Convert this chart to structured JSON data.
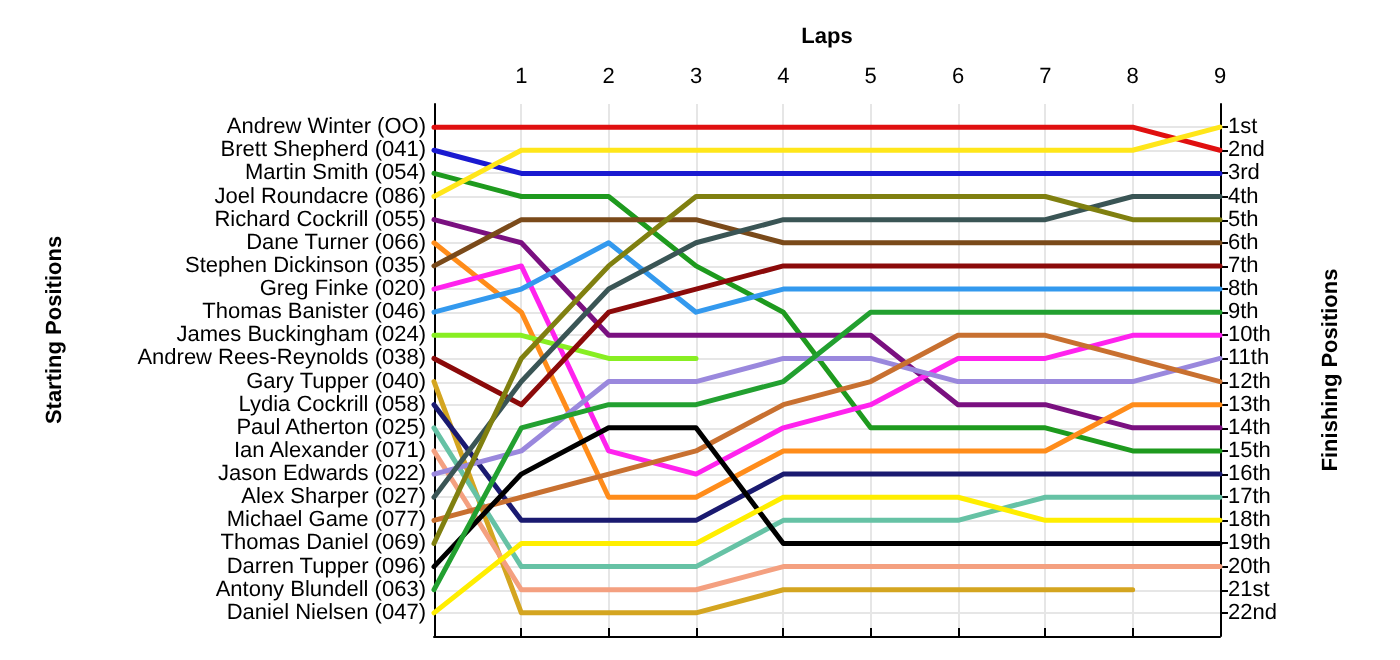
{
  "chart_data": {
    "type": "line",
    "xlabel": "Laps",
    "annotations": [
      "Starting Positions"
    ],
    "y2label": "Finishing Positions",
    "legend": "left",
    "x": [
      0,
      1,
      2,
      3,
      4,
      5,
      6,
      7,
      8,
      9
    ],
    "xlim": [
      0,
      9
    ],
    "xticks": [
      1,
      2,
      3,
      4,
      5,
      6,
      7,
      8,
      9
    ],
    "y2lim": [
      23,
      0
    ],
    "y2ticks": [
      {
        "value": 1,
        "label": "1st"
      },
      {
        "value": 2,
        "label": "2nd"
      },
      {
        "value": 3,
        "label": "3rd"
      },
      {
        "value": 4,
        "label": "4th"
      },
      {
        "value": 5,
        "label": "5th"
      },
      {
        "value": 6,
        "label": "6th"
      },
      {
        "value": 7,
        "label": "7th"
      },
      {
        "value": 8,
        "label": "8th"
      },
      {
        "value": 9,
        "label": "9th"
      },
      {
        "value": 10,
        "label": "10th"
      },
      {
        "value": 11,
        "label": "11th"
      },
      {
        "value": 12,
        "label": "12th"
      },
      {
        "value": 13,
        "label": "13th"
      },
      {
        "value": 14,
        "label": "14th"
      },
      {
        "value": 15,
        "label": "15th"
      },
      {
        "value": 16,
        "label": "16th"
      },
      {
        "value": 17,
        "label": "17th"
      },
      {
        "value": 18,
        "label": "18th"
      },
      {
        "value": 19,
        "label": "19th"
      },
      {
        "value": 20,
        "label": "20th"
      },
      {
        "value": 21,
        "label": "21st"
      },
      {
        "value": 22,
        "label": "22nd"
      }
    ],
    "grid": true,
    "marker": "none",
    "line_style": "solid",
    "series": [
      {
        "name": "Andrew Winter (OO)",
        "axis": "y2",
        "color": "#e01010",
        "values": [
          1,
          1,
          1,
          1,
          1,
          1,
          1,
          1,
          1,
          2
        ]
      },
      {
        "name": "Brett Shepherd (041)",
        "axis": "y2",
        "color": "#1a1ad0",
        "values": [
          2,
          3,
          3,
          3,
          3,
          3,
          3,
          3,
          3,
          3
        ]
      },
      {
        "name": "Martin Smith (054)",
        "axis": "y2",
        "color": "#1e9a1e",
        "values": [
          3,
          4,
          4,
          7,
          9,
          14,
          14,
          14,
          15,
          15
        ]
      },
      {
        "name": "Joel Roundacre (086)",
        "axis": "y2",
        "color": "#ffe61a",
        "values": [
          4,
          2,
          2,
          2,
          2,
          2,
          2,
          2,
          2,
          1
        ]
      },
      {
        "name": "Richard Cockrill (055)",
        "axis": "y2",
        "color": "#7a1080",
        "values": [
          5,
          6,
          10,
          10,
          10,
          10,
          13,
          13,
          14,
          14
        ]
      },
      {
        "name": "Dane Turner (066)",
        "axis": "y2",
        "color": "#ff8c1a",
        "values": [
          6,
          9,
          17,
          17,
          15,
          15,
          15,
          15,
          13,
          13
        ]
      },
      {
        "name": "Stephen Dickinson (035)",
        "axis": "y2",
        "color": "#7a4a1a",
        "values": [
          7,
          5,
          5,
          5,
          6,
          6,
          6,
          6,
          6,
          6
        ]
      },
      {
        "name": "Greg Finke (020)",
        "axis": "y2",
        "color": "#ff22ee",
        "values": [
          8,
          7,
          15,
          16,
          14,
          13,
          11,
          11,
          10,
          10
        ]
      },
      {
        "name": "Thomas Banister (046)",
        "axis": "y2",
        "color": "#3399ee",
        "values": [
          9,
          8,
          6,
          9,
          8,
          8,
          8,
          8,
          8,
          8
        ]
      },
      {
        "name": "James Buckingham (024)",
        "axis": "y2",
        "color": "#88ee22",
        "values": [
          10,
          10,
          11,
          11,
          null,
          null,
          null,
          null,
          null,
          null
        ]
      },
      {
        "name": "Andrew Rees-Reynolds (038)",
        "axis": "y2",
        "color": "#8b0a0a",
        "values": [
          11,
          13,
          9,
          8,
          7,
          7,
          7,
          7,
          7,
          7
        ]
      },
      {
        "name": "Gary Tupper (040)",
        "axis": "y2",
        "color": "#d4a520",
        "values": [
          12,
          22,
          22,
          22,
          21,
          21,
          21,
          21,
          21,
          null
        ]
      },
      {
        "name": "Lydia Cockrill (058)",
        "axis": "y2",
        "color": "#1a1a70",
        "values": [
          13,
          18,
          18,
          18,
          16,
          16,
          16,
          16,
          16,
          16
        ]
      },
      {
        "name": "Paul Atherton (025)",
        "axis": "y2",
        "color": "#66c2a5",
        "values": [
          14,
          20,
          20,
          20,
          18,
          18,
          18,
          17,
          17,
          17
        ]
      },
      {
        "name": "Ian Alexander (071)",
        "axis": "y2",
        "color": "#f4a080",
        "values": [
          15,
          21,
          21,
          21,
          20,
          20,
          20,
          20,
          20,
          20
        ]
      },
      {
        "name": "Jason Edwards (022)",
        "axis": "y2",
        "color": "#9a88dd",
        "values": [
          16,
          15,
          12,
          12,
          11,
          11,
          12,
          12,
          12,
          11
        ]
      },
      {
        "name": "Alex Sharper (027)",
        "axis": "y2",
        "color": "#3a5555",
        "values": [
          17,
          12,
          8,
          6,
          5,
          5,
          5,
          5,
          4,
          4
        ]
      },
      {
        "name": "Michael Game (077)",
        "axis": "y2",
        "color": "#c87030",
        "values": [
          18,
          17,
          16,
          15,
          13,
          12,
          10,
          10,
          11,
          12
        ]
      },
      {
        "name": "Thomas Daniel (069)",
        "axis": "y2",
        "color": "#808010",
        "values": [
          19,
          11,
          7,
          4,
          4,
          4,
          4,
          4,
          5,
          5
        ]
      },
      {
        "name": "Darren Tupper (096)",
        "axis": "y2",
        "color": "#000000",
        "values": [
          20,
          16,
          14,
          14,
          19,
          19,
          19,
          19,
          19,
          19
        ]
      },
      {
        "name": "Antony Blundell (063)",
        "axis": "y2",
        "color": "#22a030",
        "values": [
          21,
          14,
          13,
          13,
          12,
          9,
          9,
          9,
          9,
          9
        ]
      },
      {
        "name": "Daniel Nielsen (047)",
        "axis": "y2",
        "color": "#ffee00",
        "values": [
          22,
          19,
          19,
          19,
          17,
          17,
          17,
          18,
          18,
          18
        ]
      }
    ]
  }
}
